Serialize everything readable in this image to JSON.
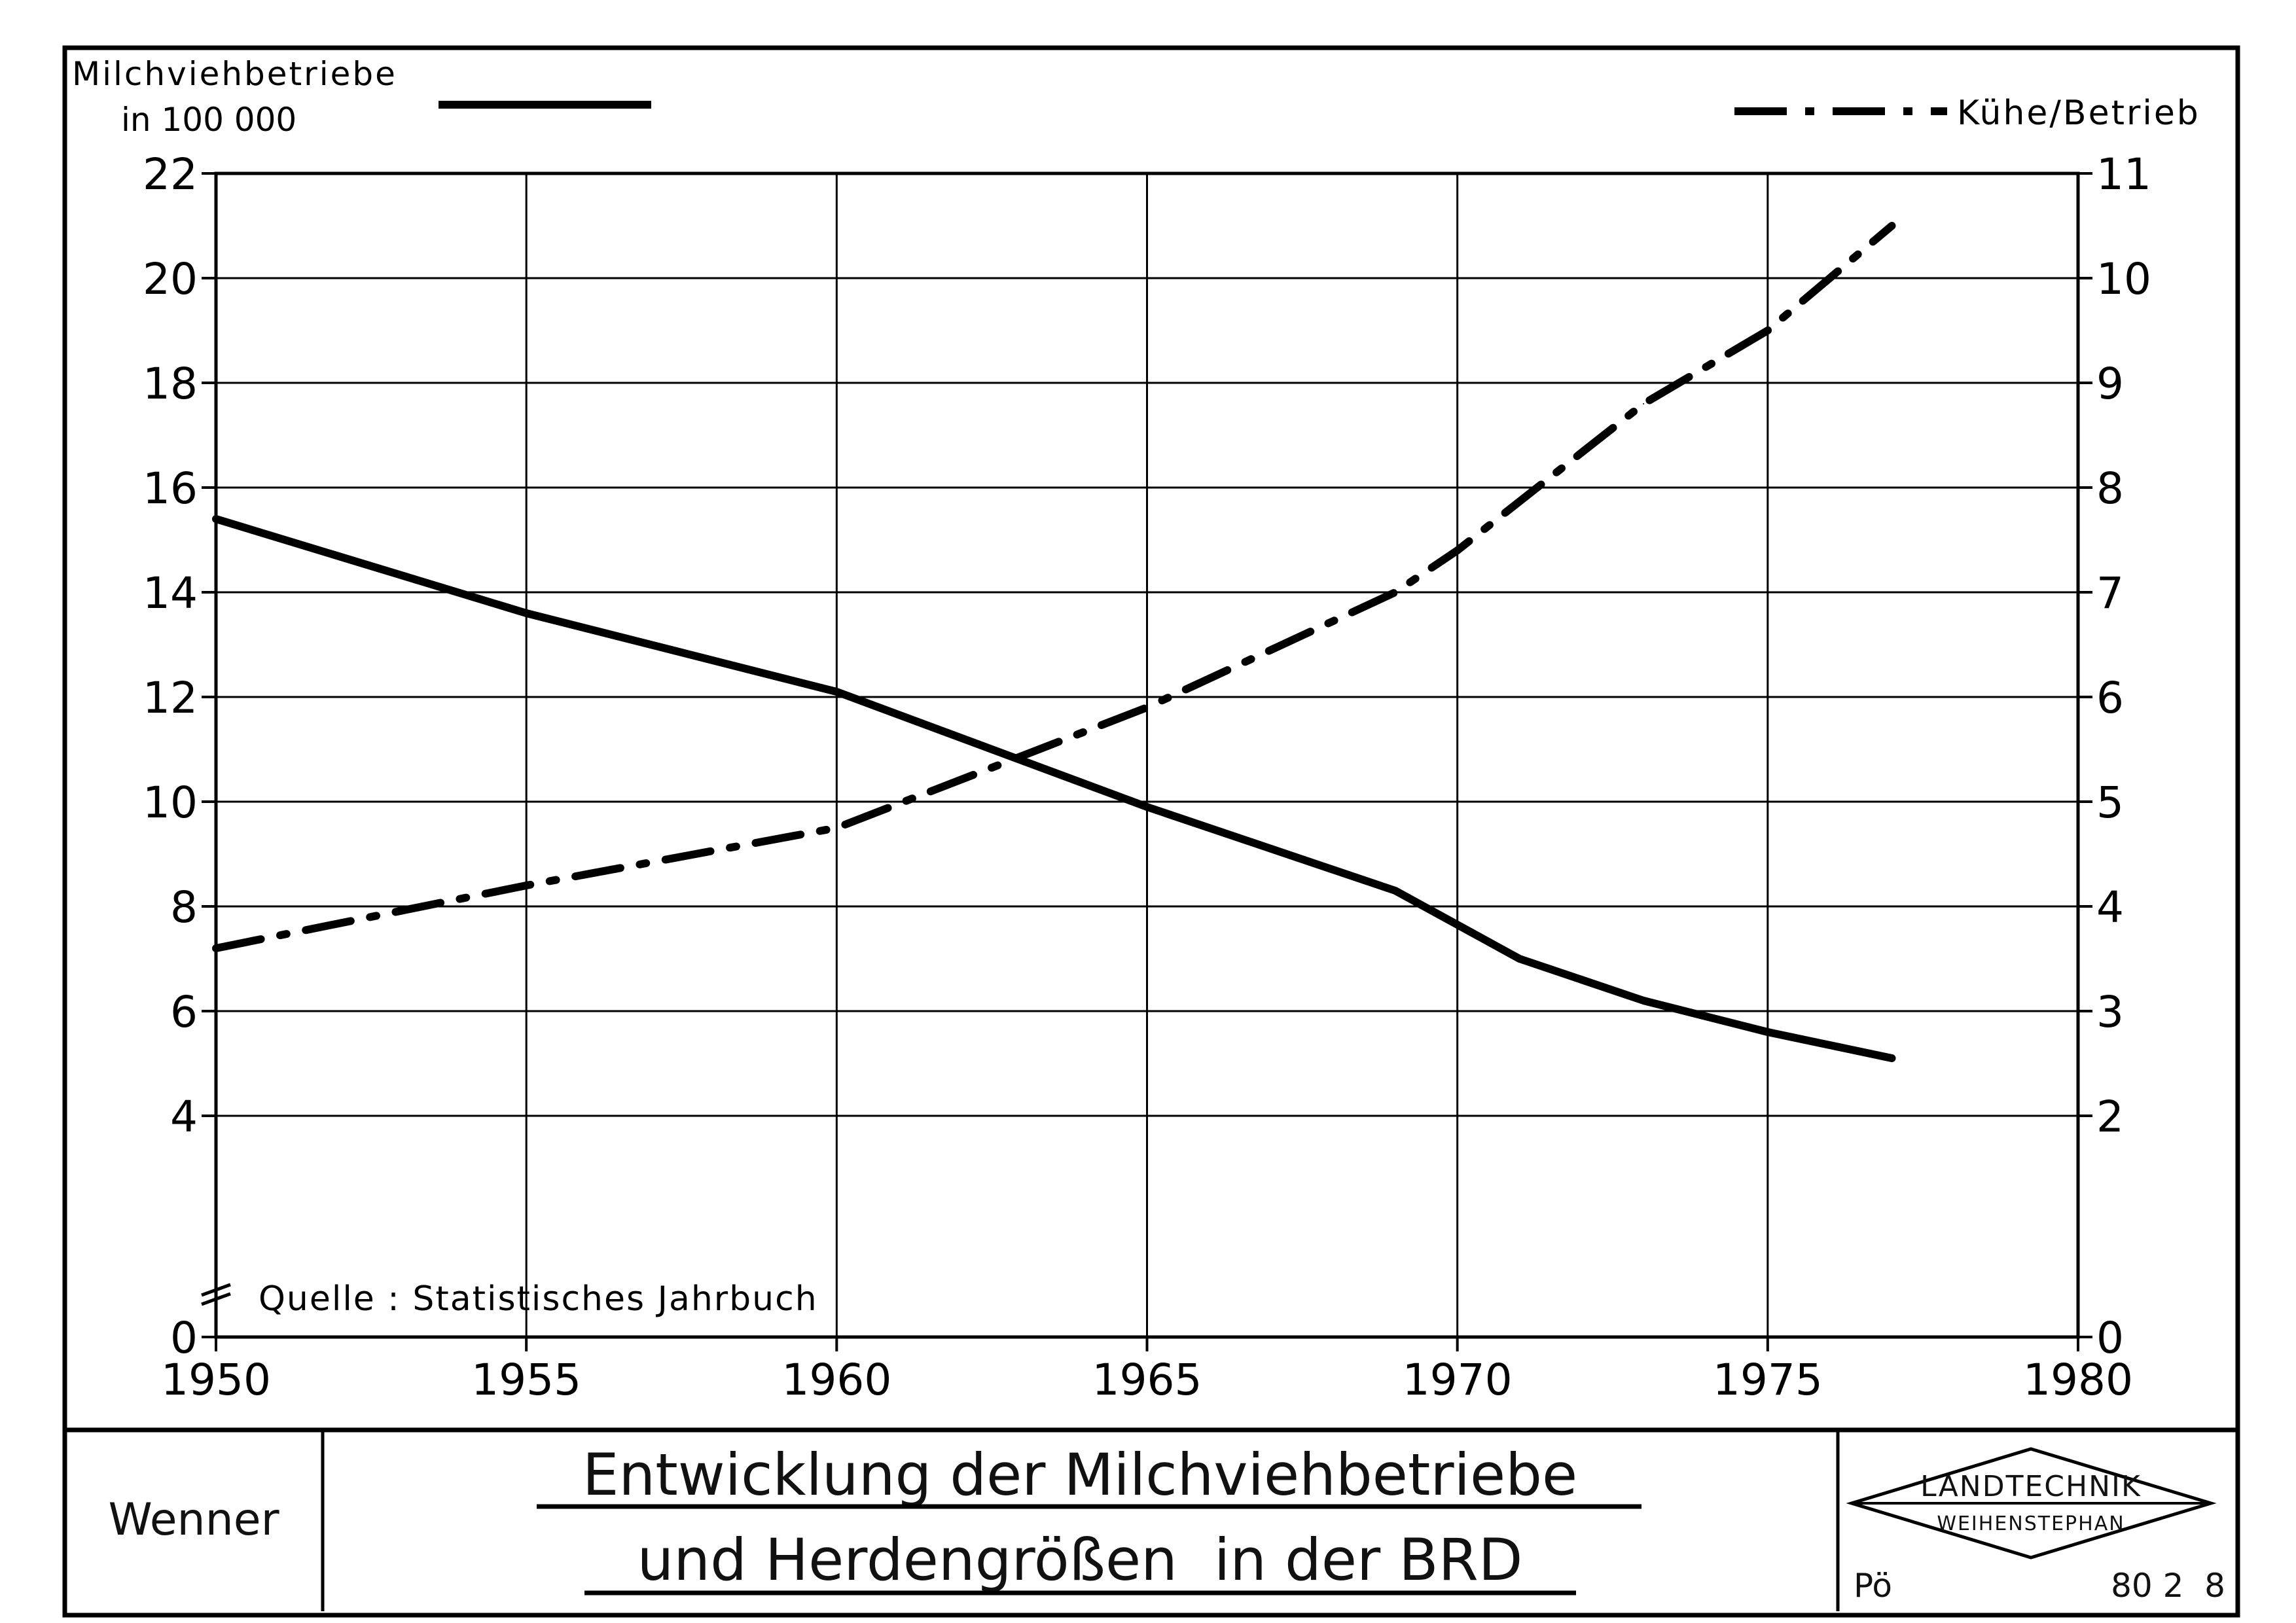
{
  "chart_data": {
    "type": "line",
    "title_lines": [
      "Entwicklung der Milchviehbetriebe",
      "und Herdengrößen  in der BRD"
    ],
    "left_axis_label_lines": [
      "Milchviehbetriebe",
      "in 100 000"
    ],
    "right_axis_label": "Kühe/Betrieb",
    "source_note": "Quelle : Statistisches Jahrbuch",
    "x_ticks": [
      "1950",
      "1955",
      "1960",
      "1965",
      "1970",
      "1975",
      "1980"
    ],
    "xlim": [
      1950,
      1980
    ],
    "left_ticks": [
      "0",
      "4",
      "6",
      "8",
      "10",
      "12",
      "14",
      "16",
      "18",
      "20",
      "22"
    ],
    "left_ylim": [
      2,
      22
    ],
    "left_axis_break": true,
    "right_ticks": [
      "0",
      "2",
      "3",
      "4",
      "5",
      "6",
      "7",
      "8",
      "9",
      "10",
      "11"
    ],
    "right_ylim": [
      1,
      11
    ],
    "grid": true,
    "series": [
      {
        "axis": "left",
        "style": "solid",
        "x": [
          1950,
          1955,
          1960,
          1965,
          1969,
          1971,
          1973,
          1975,
          1977
        ],
        "values": [
          15.4,
          13.6,
          12.1,
          9.9,
          8.3,
          7.0,
          6.2,
          5.6,
          5.1
        ]
      },
      {
        "axis": "right",
        "style": "dash-dot",
        "x": [
          1950,
          1955,
          1960,
          1965,
          1969,
          1970,
          1973,
          1975,
          1977
        ],
        "values": [
          3.6,
          4.2,
          4.75,
          5.9,
          7.0,
          7.4,
          8.8,
          9.5,
          10.5
        ]
      }
    ]
  },
  "titleblock": {
    "author": "Wenner",
    "logo_line1": "LANDTECHNIK",
    "logo_line2": "WEIHENSTEPHAN",
    "initials": "Pö",
    "number": "80 2  8"
  },
  "colors": {
    "ink": "#000000",
    "paper": "#ffffff"
  }
}
